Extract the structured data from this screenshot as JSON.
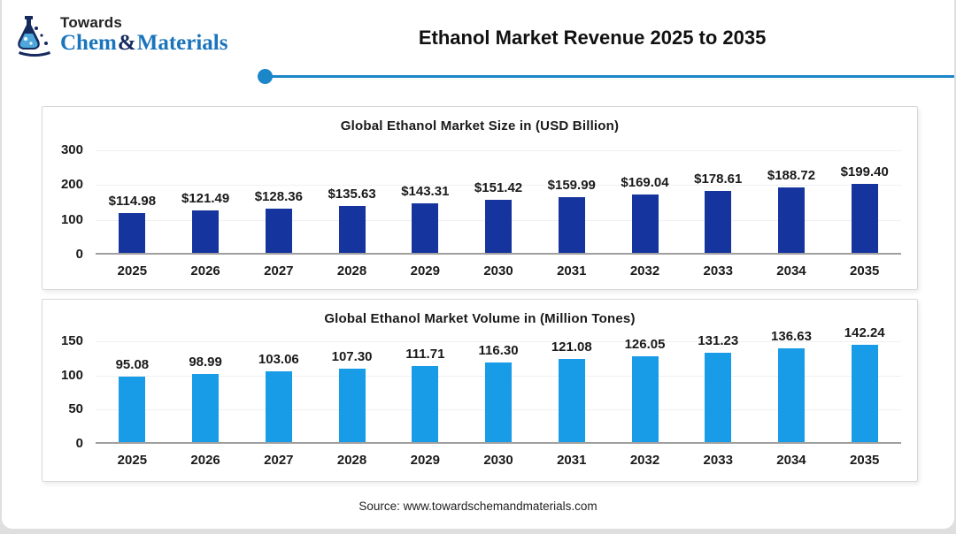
{
  "header": {
    "brand_top": "Towards",
    "brand_chem": "Chem",
    "brand_amp": "&",
    "brand_materials": "Materials",
    "title": "Ethanol Market Revenue 2025 to 2035"
  },
  "footer": {
    "source": "Source: www.towardschemandmaterials.com"
  },
  "colors": {
    "dark_blue_bar": "#16349E",
    "light_blue_bar": "#189CE8",
    "accent_line": "#1B86C8",
    "brand_blue": "#1B75BC",
    "brand_navy": "#152A5E"
  },
  "chart_data": [
    {
      "type": "bar",
      "title": "Global Ethanol Market Size in (USD Billion)",
      "categories": [
        "2025",
        "2026",
        "2027",
        "2028",
        "2029",
        "2030",
        "2031",
        "2032",
        "2033",
        "2034",
        "2035"
      ],
      "values": [
        114.98,
        121.49,
        128.36,
        135.63,
        143.31,
        151.42,
        159.99,
        169.04,
        178.61,
        188.72,
        199.4
      ],
      "value_labels": [
        "$114.98",
        "$121.49",
        "$128.36",
        "$135.63",
        "$143.31",
        "$151.42",
        "$159.99",
        "$169.04",
        "$178.61",
        "$188.72",
        "$199.40"
      ],
      "y_ticks": [
        300,
        200,
        100,
        0
      ],
      "y_max": 300,
      "ylim": [
        0,
        300
      ],
      "xlabel": "",
      "ylabel": "",
      "grid": true,
      "legend": "none",
      "bar_color": "#16349E"
    },
    {
      "type": "bar",
      "title": "Global Ethanol Market  Volume in (Million Tones)",
      "categories": [
        "2025",
        "2026",
        "2027",
        "2028",
        "2029",
        "2030",
        "2031",
        "2032",
        "2033",
        "2034",
        "2035"
      ],
      "values": [
        95.08,
        98.99,
        103.06,
        107.3,
        111.71,
        116.3,
        121.08,
        126.05,
        131.23,
        136.63,
        142.24
      ],
      "value_labels": [
        "95.08",
        "98.99",
        "103.06",
        "107.30",
        "111.71",
        "116.30",
        "121.08",
        "126.05",
        "131.23",
        "136.63",
        "142.24"
      ],
      "y_ticks": [
        150,
        100,
        50,
        0
      ],
      "y_max": 150,
      "ylim": [
        0,
        150
      ],
      "xlabel": "",
      "ylabel": "",
      "grid": true,
      "legend": "none",
      "bar_color": "#189CE8"
    }
  ]
}
